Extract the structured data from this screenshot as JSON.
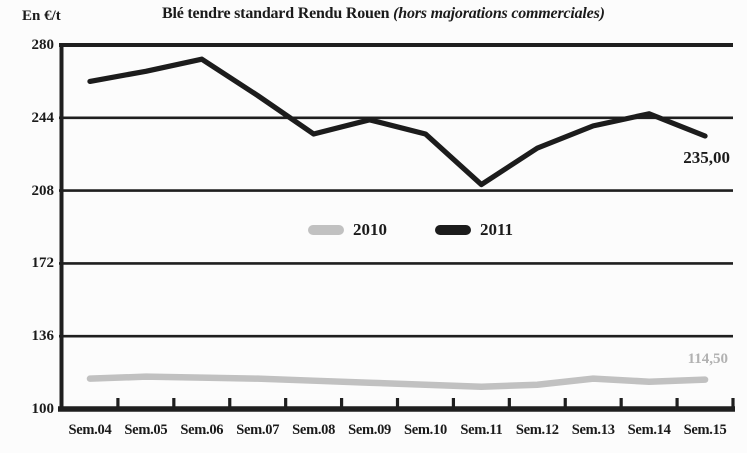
{
  "header": {
    "y_axis_unit": "En €/t",
    "title_main": "Blé tendre standard Rendu Rouen",
    "title_note": "(hors majorations commerciales)"
  },
  "colors": {
    "frame": "#1f1f1f",
    "background": "#fcfcfc",
    "series_2010": "#c1c1c1",
    "series_2011": "#1c1c1c",
    "end_label_2010": "#b2b2b2",
    "end_label_2011": "#1b1b1b"
  },
  "chart_data": {
    "type": "line",
    "title": "Blé tendre standard Rendu Rouen (hors majorations commerciales)",
    "ylabel": "En €/t",
    "xlabel": "",
    "categories": [
      "Sem.04",
      "Sem.05",
      "Sem.06",
      "Sem.07",
      "Sem.08",
      "Sem.09",
      "Sem.10",
      "Sem.11",
      "Sem.12",
      "Sem.13",
      "Sem.14",
      "Sem.15"
    ],
    "series": [
      {
        "name": "2010",
        "color": "#c1c1c1",
        "values": [
          115,
          116,
          115.5,
          115,
          114,
          113,
          112,
          111,
          112,
          115,
          113.5,
          114.5
        ],
        "last_label": "114,50"
      },
      {
        "name": "2011",
        "color": "#1c1c1c",
        "values": [
          262,
          267,
          273,
          255,
          236,
          243,
          236,
          211,
          229,
          240,
          246,
          235
        ],
        "last_label": "235,00"
      }
    ],
    "yticks": [
      280,
      244,
      208,
      172,
      136,
      100
    ],
    "ylim": [
      100,
      280
    ],
    "grid": true,
    "legend_position": "inside-center"
  }
}
